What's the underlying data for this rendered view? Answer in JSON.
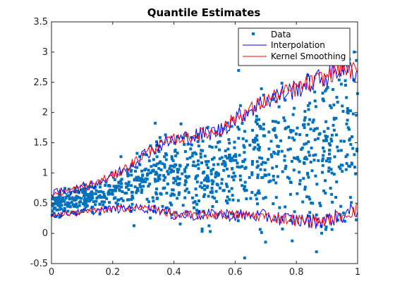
{
  "chart_data": {
    "type": "scatter",
    "title": "Quantile Estimates",
    "xlabel": "",
    "ylabel": "",
    "xlim": [
      0,
      1
    ],
    "ylim": [
      -0.5,
      3.5
    ],
    "xticks": [
      "0",
      "0.2",
      "0.4",
      "0.6",
      "0.8",
      "1"
    ],
    "yticks": [
      "-0.5",
      "0",
      "0.5",
      "1",
      "1.5",
      "2",
      "2.5",
      "3",
      "3.5"
    ],
    "grid": false,
    "legend_position": "top-right",
    "legend": [
      "Data",
      "Interpolation",
      "Kernel Smoothing"
    ],
    "colors": {
      "data": "#0072BD",
      "interpolation": "#0000FF",
      "kernel": "#FF0000",
      "axis": "#262626"
    },
    "data_description": "~1000 points: x uniform on [0,1], y spread between lower and upper bands",
    "lower_quantile_curve": {
      "x": [
        0,
        0.05,
        0.1,
        0.15,
        0.2,
        0.25,
        0.3,
        0.35,
        0.4,
        0.45,
        0.5,
        0.55,
        0.6,
        0.65,
        0.7,
        0.75,
        0.8,
        0.85,
        0.9,
        0.95,
        1.0
      ],
      "y": [
        0.3,
        0.33,
        0.35,
        0.38,
        0.4,
        0.42,
        0.42,
        0.4,
        0.3,
        0.3,
        0.3,
        0.32,
        0.3,
        0.3,
        0.28,
        0.25,
        0.22,
        0.2,
        0.22,
        0.3,
        0.4
      ]
    },
    "upper_quantile_curve": {
      "x": [
        0,
        0.05,
        0.1,
        0.15,
        0.2,
        0.25,
        0.3,
        0.35,
        0.4,
        0.45,
        0.5,
        0.55,
        0.6,
        0.65,
        0.7,
        0.75,
        0.8,
        0.85,
        0.9,
        0.95,
        1.0
      ],
      "y": [
        0.65,
        0.7,
        0.75,
        0.85,
        0.95,
        1.1,
        1.3,
        1.45,
        1.55,
        1.6,
        1.65,
        1.7,
        1.9,
        2.05,
        2.2,
        2.3,
        2.4,
        2.5,
        2.6,
        2.75,
        2.65
      ]
    }
  }
}
